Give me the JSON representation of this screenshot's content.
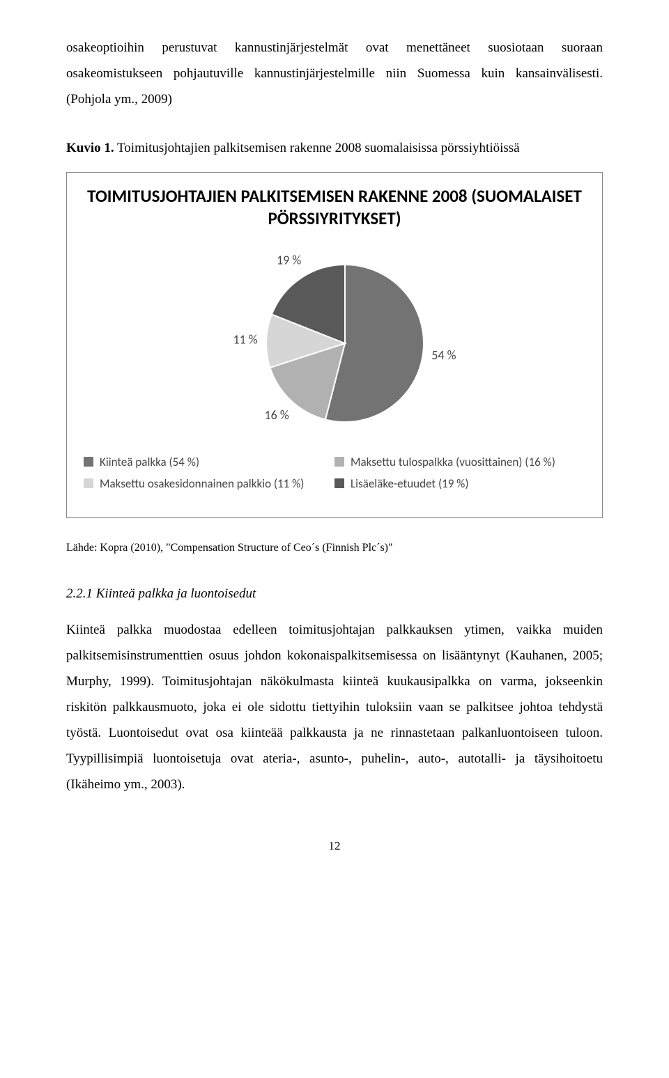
{
  "intro_para": "osakeoptioihin perustuvat kannustinjärjestelmät ovat menettäneet suosiotaan suoraan osakeomistukseen pohjautuville kannustinjärjestelmille niin Suomessa kuin kansainvälisesti. (Pohjola ym., 2009)",
  "caption_bold": "Kuvio 1.",
  "caption_rest": " Toimitusjohtajien palkitsemisen rakenne 2008 suomalaisissa pörssiyhtiöissä",
  "chart": {
    "type": "pie",
    "title": "TOIMITUSJOHTAJIEN PALKITSEMISEN RAKENNE 2008 (SUOMALAISET PÖRSSIYRITYKSET)",
    "title_fontsize": 25,
    "title_weight": "bold",
    "title_font": "Calibri",
    "background_color": "#ffffff",
    "border_color": "#888888",
    "slices": [
      {
        "label": "Kiinteä palkka (54 %)",
        "value": 54,
        "color": "#737373",
        "label_text": "54 %"
      },
      {
        "label": "Maksettu tulospalkka (vuosittainen) (16 %)",
        "value": 16,
        "color": "#b1b1b1",
        "label_text": "16 %"
      },
      {
        "label": "Maksettu osakesidonnainen palkkio (11 %)",
        "value": 11,
        "color": "#d6d6d6",
        "label_text": "11 %"
      },
      {
        "label": "Lisäeläke-etuudet (19 %)",
        "value": 19,
        "color": "#595959",
        "label_text": "19 %"
      }
    ],
    "radius": 113,
    "label_fontsize": 18,
    "label_font": "Calibri",
    "label_color": "#444444",
    "legend_fontsize": 17,
    "legend_rows": [
      [
        0,
        1
      ],
      [
        2,
        3
      ]
    ],
    "start_angle_deg": -90,
    "slice_border_color": "#ffffff",
    "slice_border_width": 2
  },
  "source_line": "Lähde: Kopra (2010), \"Compensation Structure of Ceo´s (Finnish Plc´s)\"",
  "subhead": "2.2.1   Kiinteä palkka ja luontoisedut",
  "body_para": "Kiinteä palkka muodostaa edelleen toimitusjohtajan palkkauksen ytimen, vaikka muiden palkitsemisinstrumenttien osuus johdon kokonaispalkitsemisessa on lisääntynyt (Kauhanen, 2005; Murphy, 1999). Toimitusjohtajan näkökulmasta kiinteä kuukausipalkka on varma, jokseenkin riskitön palkkausmuoto, joka ei ole sidottu tiettyihin tuloksiin vaan se palkitsee johtoa tehdystä työstä. Luontoisedut ovat osa kiinteää palkkausta ja ne rinnastetaan palkanluontoiseen tuloon. Tyypillisimpiä luontoisetuja ovat ateria-, asunto-, puhelin-, auto-, autotalli- ja täysihoitoetu (Ikäheimo ym., 2003).",
  "page_number": "12"
}
